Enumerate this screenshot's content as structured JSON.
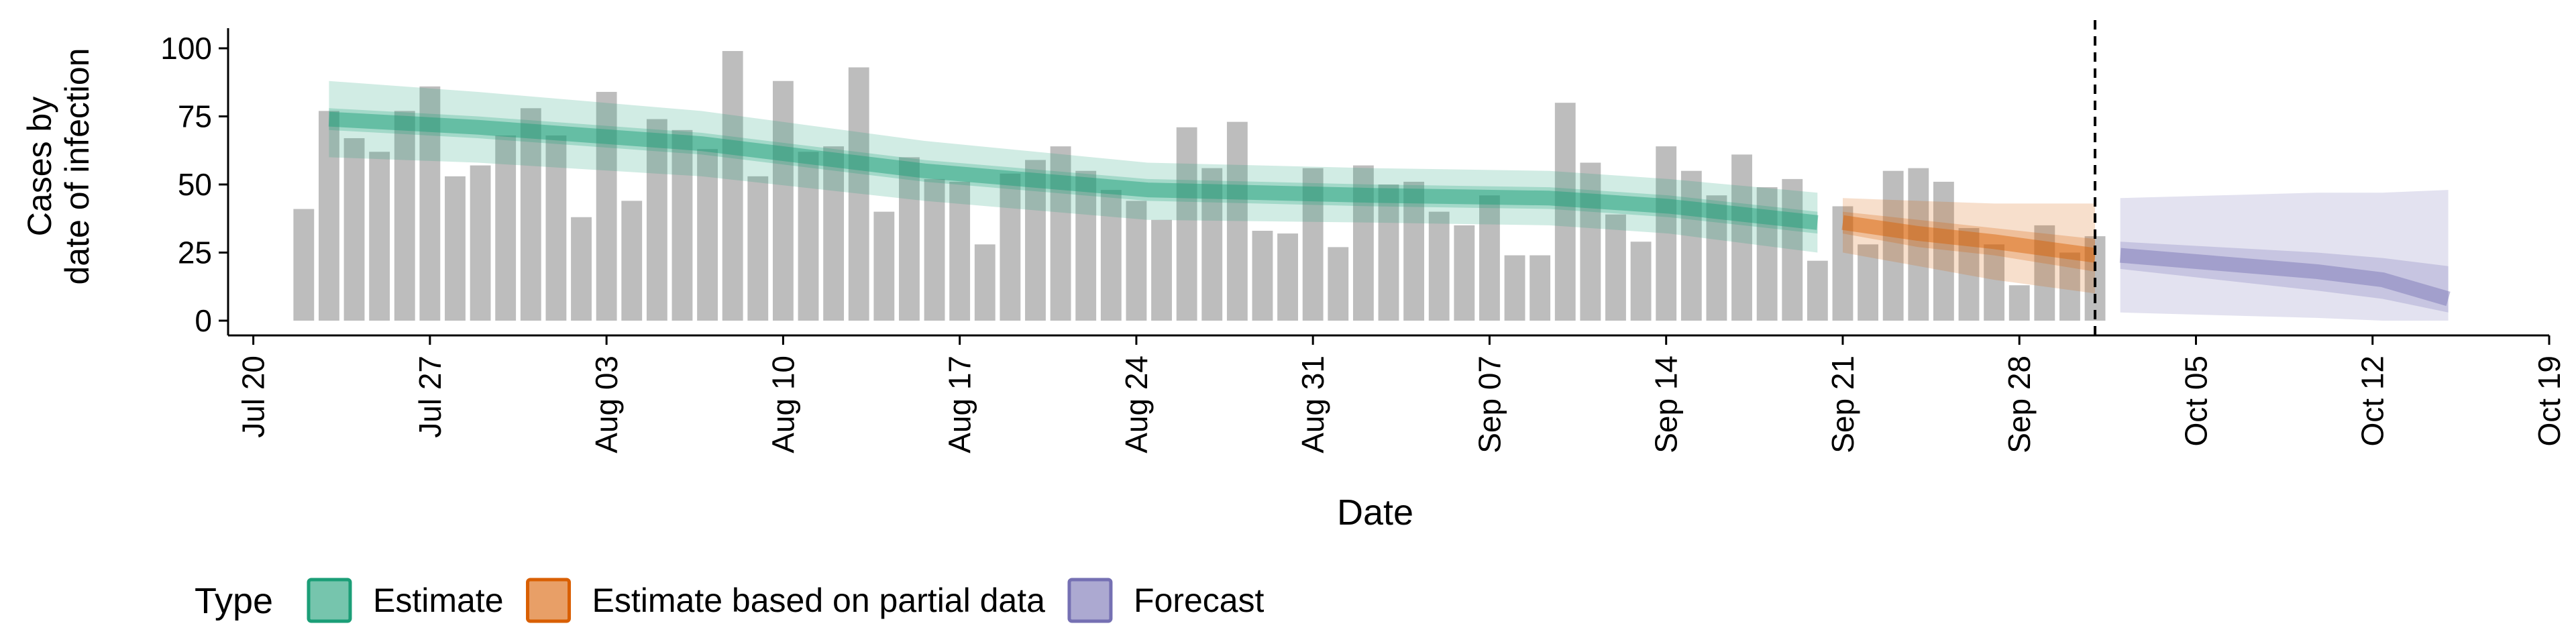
{
  "chart_data": {
    "type": "bar",
    "ylabel_line1": "Cases by",
    "ylabel_line2": "date of infection",
    "xlabel": "Date",
    "ylim": [
      0,
      100
    ],
    "y_ticks": [
      0,
      25,
      50,
      75,
      100
    ],
    "x_range": [
      "2020-07-19",
      "2020-10-19"
    ],
    "x_ticks": [
      {
        "date": "2020-07-20",
        "label": "Jul 20"
      },
      {
        "date": "2020-07-27",
        "label": "Jul 27"
      },
      {
        "date": "2020-08-03",
        "label": "Aug 03"
      },
      {
        "date": "2020-08-10",
        "label": "Aug 10"
      },
      {
        "date": "2020-08-17",
        "label": "Aug 17"
      },
      {
        "date": "2020-08-24",
        "label": "Aug 24"
      },
      {
        "date": "2020-08-31",
        "label": "Aug 31"
      },
      {
        "date": "2020-09-07",
        "label": "Sep 07"
      },
      {
        "date": "2020-09-14",
        "label": "Sep 14"
      },
      {
        "date": "2020-09-21",
        "label": "Sep 21"
      },
      {
        "date": "2020-09-28",
        "label": "Sep 28"
      },
      {
        "date": "2020-10-05",
        "label": "Oct 05"
      },
      {
        "date": "2020-10-12",
        "label": "Oct 12"
      },
      {
        "date": "2020-10-19",
        "label": "Oct 19"
      }
    ],
    "bar_start": "2020-07-22",
    "bars": [
      41,
      77,
      67,
      62,
      77,
      86,
      53,
      57,
      68,
      78,
      68,
      38,
      84,
      44,
      74,
      70,
      63,
      99,
      53,
      88,
      62,
      64,
      93,
      40,
      60,
      52,
      51,
      28,
      54,
      59,
      64,
      55,
      48,
      44,
      37,
      71,
      56,
      73,
      33,
      32,
      56,
      27,
      57,
      50,
      51,
      40,
      35,
      46,
      24,
      24,
      80,
      58,
      39,
      29,
      64,
      55,
      46,
      61,
      49,
      52,
      22,
      42,
      28,
      55,
      56,
      51,
      34,
      28,
      13,
      35,
      25,
      31
    ],
    "forecast_date": "2020-10-01",
    "series": [
      {
        "name": "Estimate",
        "color": "#1b9e77",
        "start": "2020-07-23",
        "end": "2020-09-20",
        "median": [
          [
            0,
            74
          ],
          [
            0.1,
            71
          ],
          [
            0.25,
            65
          ],
          [
            0.4,
            55
          ],
          [
            0.55,
            48
          ],
          [
            0.7,
            46
          ],
          [
            0.82,
            45
          ],
          [
            0.9,
            42
          ],
          [
            1,
            36
          ]
        ],
        "inner": [
          [
            0,
            78,
            70
          ],
          [
            0.1,
            75,
            67
          ],
          [
            0.25,
            69,
            61
          ],
          [
            0.4,
            59,
            51
          ],
          [
            0.55,
            52,
            44
          ],
          [
            0.7,
            50,
            42
          ],
          [
            0.82,
            49,
            41
          ],
          [
            0.9,
            46,
            38
          ],
          [
            1,
            40,
            32
          ]
        ],
        "outer": [
          [
            0,
            88,
            60
          ],
          [
            0.1,
            84,
            58
          ],
          [
            0.25,
            77,
            53
          ],
          [
            0.4,
            66,
            44
          ],
          [
            0.55,
            58,
            37
          ],
          [
            0.7,
            56,
            36
          ],
          [
            0.82,
            55,
            35
          ],
          [
            0.9,
            52,
            32
          ],
          [
            1,
            47,
            25
          ]
        ]
      },
      {
        "name": "Estimate based on partial data",
        "color": "#d95f02",
        "start": "2020-09-21",
        "end": "2020-10-01",
        "median": [
          [
            0,
            36
          ],
          [
            0.3,
            32
          ],
          [
            0.6,
            29
          ],
          [
            1,
            24
          ]
        ],
        "inner": [
          [
            0,
            40,
            32
          ],
          [
            0.3,
            37,
            27
          ],
          [
            0.6,
            34,
            24
          ],
          [
            1,
            30,
            18
          ]
        ],
        "outer": [
          [
            0,
            45,
            25
          ],
          [
            0.3,
            44,
            20
          ],
          [
            0.6,
            43,
            15
          ],
          [
            1,
            43,
            10
          ]
        ]
      },
      {
        "name": "Forecast",
        "color": "#7570b3",
        "start": "2020-10-02",
        "end": "2020-10-15",
        "median": [
          [
            0,
            24
          ],
          [
            0.3,
            21
          ],
          [
            0.6,
            18
          ],
          [
            0.8,
            15
          ],
          [
            1,
            8
          ]
        ],
        "inner": [
          [
            0,
            29,
            19
          ],
          [
            0.3,
            27,
            15
          ],
          [
            0.6,
            25,
            11
          ],
          [
            0.8,
            23,
            8
          ],
          [
            1,
            20,
            3
          ]
        ],
        "outer": [
          [
            0,
            45,
            3
          ],
          [
            0.3,
            46,
            2
          ],
          [
            0.6,
            47,
            1
          ],
          [
            0.8,
            47,
            0
          ],
          [
            1,
            48,
            0
          ]
        ]
      }
    ],
    "legend": {
      "title": "Type",
      "position": "bottom-left",
      "items": [
        "Estimate",
        "Estimate based on partial data",
        "Forecast"
      ]
    }
  }
}
